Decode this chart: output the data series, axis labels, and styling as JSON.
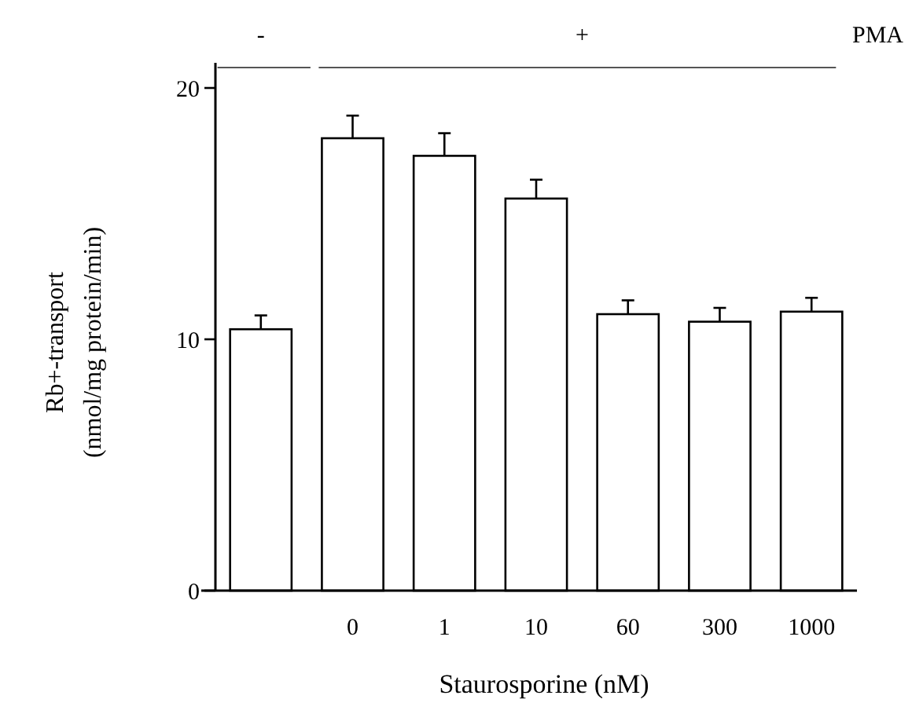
{
  "chart_data": {
    "type": "bar",
    "xlabel": "Staurosporine (nM)",
    "ylabel": "Rb+-transport\n(nmol/mg protein/min)",
    "categories": [
      null,
      "0",
      "1",
      "10",
      "60",
      "300",
      "1000"
    ],
    "values": [
      10.4,
      18.0,
      17.3,
      15.6,
      11.0,
      10.7,
      11.1
    ],
    "errors": [
      0.55,
      0.9,
      0.9,
      0.75,
      0.55,
      0.55,
      0.55
    ],
    "color": "#ffffff",
    "ylim": [
      0,
      21
    ],
    "yticks": [
      0,
      10,
      20
    ],
    "grid": false,
    "annotations": [
      "-",
      "+",
      "PMA"
    ]
  }
}
